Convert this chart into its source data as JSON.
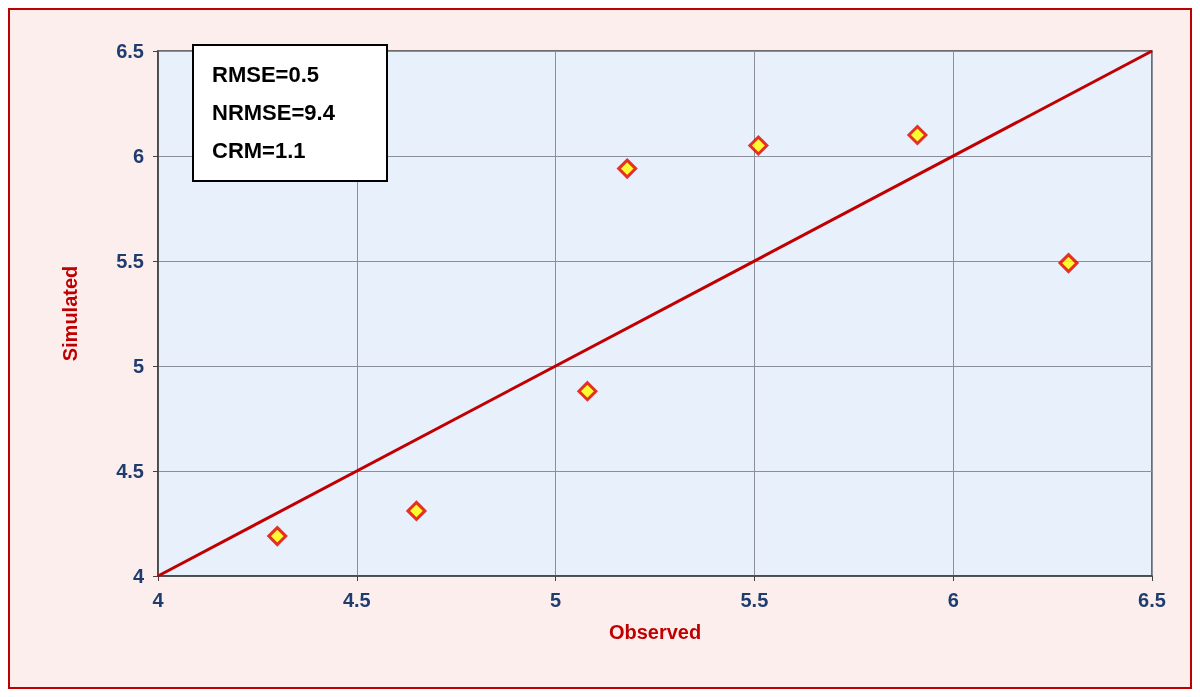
{
  "chart_data": {
    "type": "scatter",
    "xlabel": "Observed",
    "ylabel": "Simulated",
    "xlim": [
      4,
      6.5
    ],
    "xticks": [
      4,
      4.5,
      5,
      5.5,
      6,
      6.5
    ],
    "ylim": [
      4,
      6.5
    ],
    "yticks": [
      4,
      4.5,
      5,
      5.5,
      6,
      6.5
    ],
    "grid": true,
    "marker": "diamond",
    "annotations": [
      "RMSE=0.5",
      "NRMSE=9.4",
      "CRM=1.1"
    ],
    "series": [
      {
        "color": "#ffff00",
        "x": [
          4.3,
          4.65,
          5.08,
          5.18,
          5.51,
          5.91,
          6.29
        ],
        "values": [
          4.19,
          4.31,
          4.88,
          5.94,
          6.05,
          6.1,
          5.49
        ]
      },
      {
        "type": "line",
        "color": "#c00000",
        "x": [
          4,
          6.5
        ],
        "values": [
          4,
          6.5
        ],
        "marker": "none",
        "line_style": "solid"
      }
    ]
  }
}
